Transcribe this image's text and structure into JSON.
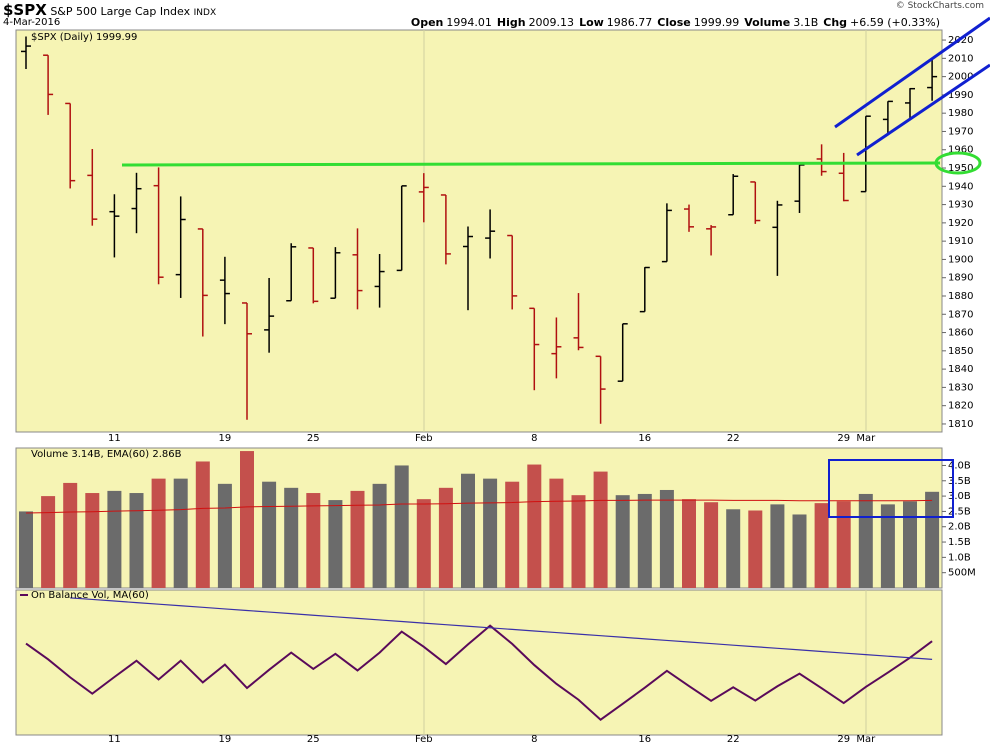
{
  "header": {
    "symbol": "$SPX",
    "name": "S&P 500 Large Cap Index",
    "exchange": "INDX",
    "date": "4-Mar-2016",
    "copyright": "© StockCharts.com",
    "quote": [
      {
        "label": "Open",
        "value": "1994.01"
      },
      {
        "label": "High",
        "value": "2009.13"
      },
      {
        "label": "Low",
        "value": "1986.77"
      },
      {
        "label": "Close",
        "value": "1999.99"
      },
      {
        "label": "Volume",
        "value": "3.1B"
      },
      {
        "label": "Chg",
        "value": "+6.59 (+0.33%)"
      }
    ]
  },
  "chart_data": [
    {
      "type": "ohlc",
      "title": "$SPX (Daily) 1999.99",
      "categories": [
        null,
        null,
        null,
        null,
        "11",
        null,
        null,
        null,
        null,
        "19",
        null,
        null,
        null,
        "25",
        null,
        null,
        null,
        null,
        "Feb",
        null,
        null,
        null,
        null,
        "8",
        null,
        null,
        null,
        null,
        "16",
        null,
        null,
        null,
        "22",
        null,
        null,
        null,
        null,
        "29",
        "Mar",
        null,
        null,
        null
      ],
      "open": [
        2013.78,
        2011.71,
        1985.32,
        1945.97,
        1926.12,
        1927.83,
        1940.34,
        1891.68,
        1916.68,
        1888.66,
        1876.18,
        1861.46,
        1877.4,
        1906.28,
        1878.79,
        1902.52,
        1885.22,
        1894.0,
        1936.94,
        1935.26,
        1907.07,
        1911.67,
        1913.07,
        1873.25,
        1848.46,
        1857.1,
        1847.0,
        1833.4,
        1871.44,
        1898.8,
        1927.57,
        1916.74,
        1924.44,
        1942.38,
        1917.56,
        1931.87,
        1954.95,
        1947.13,
        1937.09,
        1976.6,
        1985.6,
        1994.01
      ],
      "high": [
        2021.94,
        2011.71,
        1985.32,
        1960.4,
        1935.65,
        1947.38,
        1950.33,
        1934.47,
        1916.68,
        1901.44,
        1876.18,
        1889.85,
        1908.85,
        1906.28,
        1906.73,
        1916.99,
        1902.96,
        1940.24,
        1947.2,
        1935.26,
        1918.01,
        1927.35,
        1913.07,
        1873.25,
        1868.25,
        1881.6,
        1847.0,
        1864.78,
        1895.77,
        1930.68,
        1930.0,
        1918.78,
        1946.7,
        1942.38,
        1932.08,
        1951.83,
        1962.96,
        1958.27,
        1978.35,
        1986.51,
        1993.69,
        2009.13
      ],
      "low": [
        2004.17,
        1979.05,
        1938.83,
        1918.46,
        1901.1,
        1914.35,
        1886.41,
        1878.93,
        1857.83,
        1864.6,
        1812.29,
        1848.98,
        1877.4,
        1875.97,
        1878.79,
        1872.7,
        1873.65,
        1894.0,
        1920.3,
        1897.29,
        1872.23,
        1900.52,
        1872.65,
        1828.46,
        1834.94,
        1850.32,
        1810.1,
        1833.4,
        1871.44,
        1898.8,
        1915.09,
        1902.17,
        1924.44,
        1919.44,
        1891.0,
        1925.41,
        1945.78,
        1931.81,
        1937.09,
        1968.8,
        1977.37,
        1986.77
      ],
      "close": [
        2016.71,
        1990.26,
        1943.09,
        1922.03,
        1923.67,
        1938.68,
        1890.28,
        1921.84,
        1880.33,
        1881.33,
        1859.33,
        1868.99,
        1906.9,
        1877.08,
        1903.63,
        1882.95,
        1893.36,
        1940.24,
        1939.38,
        1903.03,
        1912.53,
        1915.45,
        1880.05,
        1853.44,
        1852.21,
        1851.86,
        1829.08,
        1864.78,
        1895.58,
        1926.82,
        1917.83,
        1917.78,
        1945.5,
        1921.27,
        1929.8,
        1951.7,
        1948.05,
        1932.23,
        1978.35,
        1986.45,
        1993.4,
        1999.99
      ],
      "up_color": "#000000",
      "down_color": "#b01010",
      "ylim": [
        1805.6,
        2025.5
      ],
      "yticks": [
        1810,
        1820,
        1830,
        1840,
        1850,
        1860,
        1870,
        1880,
        1890,
        1900,
        1910,
        1920,
        1930,
        1940,
        1950,
        1960,
        1970,
        1980,
        1990,
        2000,
        2010,
        2020
      ]
    },
    {
      "type": "bar",
      "title": "Volume 3.14B, EMA(60) 2.86B",
      "values": [
        2.5,
        3.0,
        3.43,
        3.1,
        3.17,
        3.1,
        3.57,
        3.57,
        4.13,
        3.4,
        4.47,
        3.47,
        3.27,
        3.1,
        2.87,
        3.17,
        3.4,
        4.0,
        2.9,
        3.27,
        3.73,
        3.57,
        3.47,
        4.03,
        3.57,
        3.03,
        3.8,
        3.03,
        3.07,
        3.2,
        2.9,
        2.8,
        2.57,
        2.53,
        2.73,
        2.4,
        2.77,
        2.83,
        3.07,
        2.73,
        2.83,
        3.14
      ],
      "ema": [
        2.45,
        2.46,
        2.48,
        2.49,
        2.51,
        2.52,
        2.54,
        2.56,
        2.6,
        2.61,
        2.65,
        2.66,
        2.67,
        2.68,
        2.69,
        2.7,
        2.71,
        2.74,
        2.74,
        2.75,
        2.77,
        2.78,
        2.79,
        2.82,
        2.83,
        2.84,
        2.86,
        2.86,
        2.87,
        2.87,
        2.87,
        2.87,
        2.86,
        2.86,
        2.86,
        2.85,
        2.85,
        2.85,
        2.85,
        2.85,
        2.85,
        2.86
      ],
      "up_color": "#6b6b6b",
      "down_color": "#c4504c",
      "ema_color": "#d01010",
      "ylim": [
        0,
        4.57
      ],
      "yticks": [
        {
          "value": 0.5,
          "label": "500M"
        },
        {
          "value": 1,
          "label": "1.0B"
        },
        {
          "value": 1.5,
          "label": "1.5B"
        },
        {
          "value": 2,
          "label": "2.0B"
        },
        {
          "value": 2.5,
          "label": "2.5B"
        },
        {
          "value": 3,
          "label": "3.0B"
        },
        {
          "value": 3.5,
          "label": "3.5B"
        },
        {
          "value": 4,
          "label": "4.0B"
        }
      ]
    },
    {
      "type": "line",
      "title": "On Balance Vol, MA(60)",
      "categories": [
        null,
        null,
        null,
        null,
        "11",
        null,
        null,
        null,
        null,
        "19",
        null,
        null,
        null,
        "25",
        null,
        null,
        null,
        null,
        "Feb",
        null,
        null,
        null,
        null,
        "8",
        null,
        null,
        null,
        null,
        "16",
        null,
        null,
        null,
        "22",
        null,
        null,
        null,
        null,
        "29",
        "Mar",
        null,
        null,
        null
      ],
      "series": [
        {
          "color": "#5a0a5a",
          "values": [
            0,
            -3.0,
            -6.43,
            -9.53,
            -6.36,
            -3.26,
            -6.83,
            -3.26,
            -7.39,
            -3.99,
            -8.46,
            -4.99,
            -1.72,
            -4.82,
            -1.95,
            -5.12,
            -1.72,
            2.28,
            -0.62,
            -3.89,
            -0.16,
            3.41,
            -0.06,
            -4.09,
            -7.66,
            -10.69,
            -14.49,
            -11.46,
            -8.39,
            -5.19,
            -8.09,
            -10.89,
            -8.32,
            -10.85,
            -8.12,
            -5.72,
            -8.49,
            -11.32,
            -8.25,
            -5.52,
            -2.69,
            0.45
          ]
        },
        {
          "color": "#3a30a8",
          "values": [
            null,
            null,
            8.7,
            8.4,
            8.1,
            7.8,
            7.5,
            7.2,
            6.9,
            6.6,
            6.3,
            6.0,
            5.7,
            5.4,
            5.1,
            4.8,
            4.5,
            4.2,
            3.9,
            3.6,
            3.3,
            3.0,
            2.7,
            2.4,
            2.1,
            1.8,
            1.5,
            1.2,
            0.9,
            0.6,
            0.3,
            0.0,
            -0.3,
            -0.6,
            -0.9,
            -1.2,
            -1.5,
            -1.8,
            -2.1,
            -2.4,
            -2.7,
            -3.0
          ]
        }
      ],
      "ylim": [
        -17.4,
        10.2
      ]
    }
  ]
}
